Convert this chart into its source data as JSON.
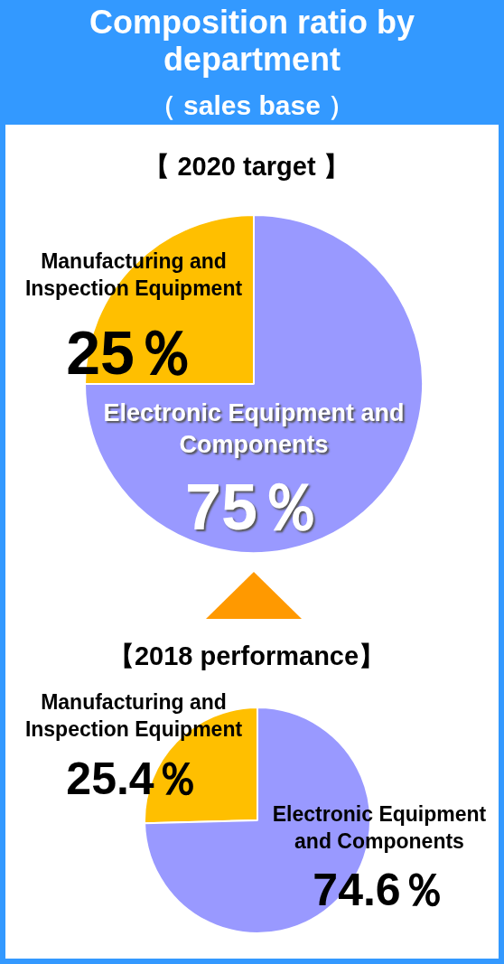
{
  "chart_data": [
    {
      "type": "other",
      "title": "Composition ratio by department",
      "subtitle": "（ sales base ）"
    },
    {
      "type": "pie",
      "title": "【 2020 target 】",
      "categories": [
        "Manufacturing and Inspection Equipment",
        "Electronic Equipment and Components"
      ],
      "values": [
        25,
        75
      ],
      "colors": [
        "#ffbf00",
        "#9999ff"
      ],
      "value_labels": [
        "25％",
        "75％"
      ]
    },
    {
      "type": "pie",
      "title": "【2018 performance】",
      "categories": [
        "Manufacturing and Inspection Equipment",
        "Electronic Equipment and Components"
      ],
      "values": [
        25.4,
        74.6
      ],
      "colors": [
        "#ffbf00",
        "#9999ff"
      ],
      "value_labels": [
        "25.4％",
        "74.6％"
      ]
    }
  ]
}
